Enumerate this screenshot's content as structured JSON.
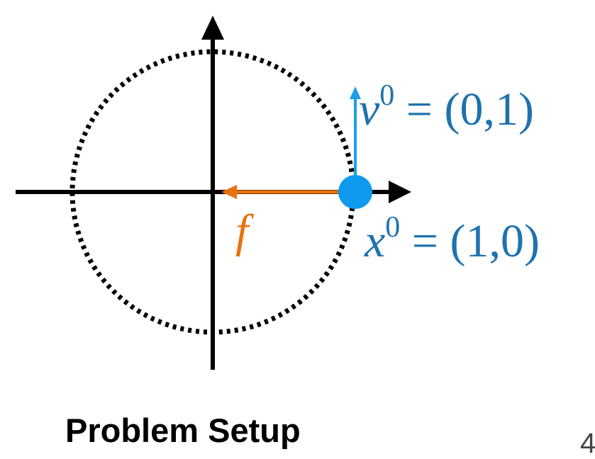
{
  "colors": {
    "axis": "#000000",
    "circle": "#000000",
    "velocity": "#1a9ee6",
    "particle": "#0f9af0",
    "force": "#e8720c",
    "label_blue": "#1f72ad",
    "label_orange": "#e8720c"
  },
  "labels": {
    "velocity_symbol": "v",
    "velocity_superscript": "0",
    "velocity_value": " = (0,1)",
    "position_symbol": "x",
    "position_superscript": "0",
    "position_value": " = (1,0)",
    "force_symbol": "f"
  },
  "caption": "Problem Setup",
  "page_number": "4"
}
